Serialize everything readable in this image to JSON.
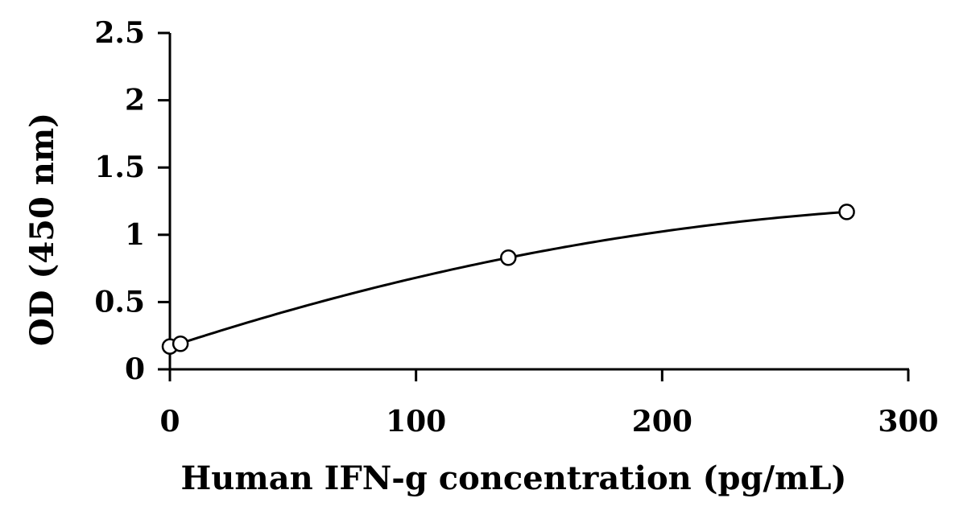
{
  "chart_data": {
    "type": "scatter",
    "title": "",
    "xlabel": "Human IFN-g concentration (pg/mL)",
    "ylabel": "OD (450 nm)",
    "xlim": [
      0,
      300
    ],
    "ylim": [
      0,
      2.5
    ],
    "x_ticks": [
      "0",
      "100",
      "200",
      "300"
    ],
    "y_ticks": [
      "0",
      "0.5",
      "1",
      "1.5",
      "2",
      "2.5"
    ],
    "grid": false,
    "legend": "none",
    "series": [
      {
        "points": [
          {
            "x": 0,
            "y": 0.17
          },
          {
            "x": 4.3,
            "y": 0.19
          },
          {
            "x": 137.5,
            "y": 0.83
          },
          {
            "x": 275,
            "y": 1.17
          }
        ],
        "marker": "open-circle",
        "color": "#000000",
        "fit_curve": true
      }
    ]
  }
}
